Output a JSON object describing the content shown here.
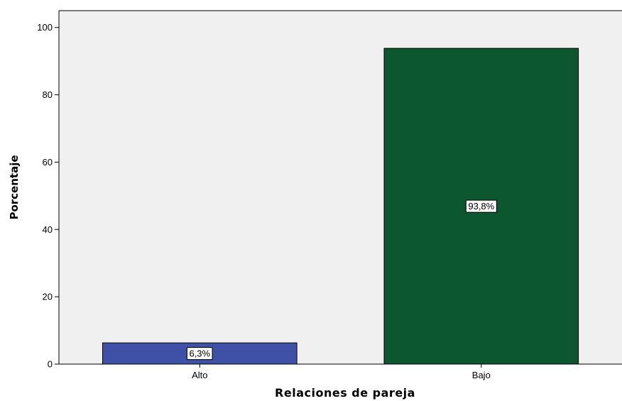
{
  "chart_data": {
    "type": "bar",
    "xlabel": "Relaciones de pareja",
    "ylabel": "Porcentaje",
    "categories": [
      "Alto",
      "Bajo"
    ],
    "values": [
      6.3,
      93.8
    ],
    "data_labels": [
      "6,3%",
      "93,8%"
    ],
    "bar_colors": [
      "#3F51A7",
      "#0C5630"
    ],
    "ylim": [
      0,
      105
    ],
    "yticks": [
      0,
      20,
      40,
      60,
      80,
      100
    ],
    "plot_background": "#F0F0F0",
    "grid": false,
    "legend": "none"
  }
}
